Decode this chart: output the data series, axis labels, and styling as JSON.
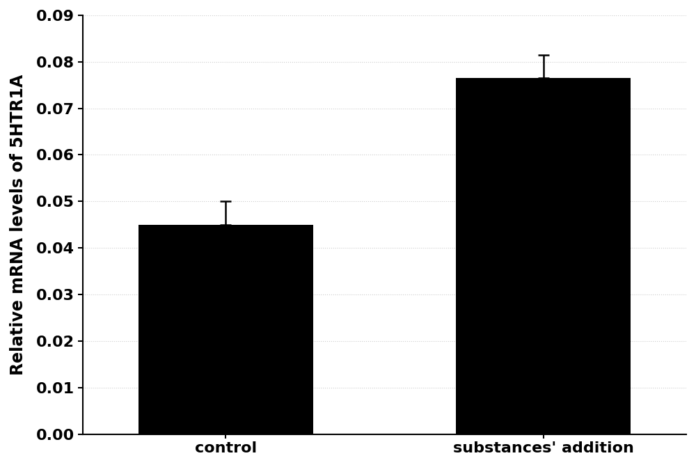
{
  "categories": [
    "control",
    "substances' addition"
  ],
  "values": [
    0.045,
    0.0765
  ],
  "errors": [
    0.005,
    0.005
  ],
  "bar_color": "#000000",
  "bar_width": 0.55,
  "ylabel": "Relative mRNA levels of 5HTR1A",
  "ylim": [
    0.0,
    0.09
  ],
  "yticks": [
    0.0,
    0.01,
    0.02,
    0.03,
    0.04,
    0.05,
    0.06,
    0.07,
    0.08,
    0.09
  ],
  "background_color": "#ffffff",
  "grid_color": "#cccccc",
  "tick_label_fontsize": 16,
  "axis_label_fontsize": 17,
  "error_capsize": 6,
  "error_linewidth": 1.8,
  "xlim": [
    -0.45,
    1.45
  ]
}
